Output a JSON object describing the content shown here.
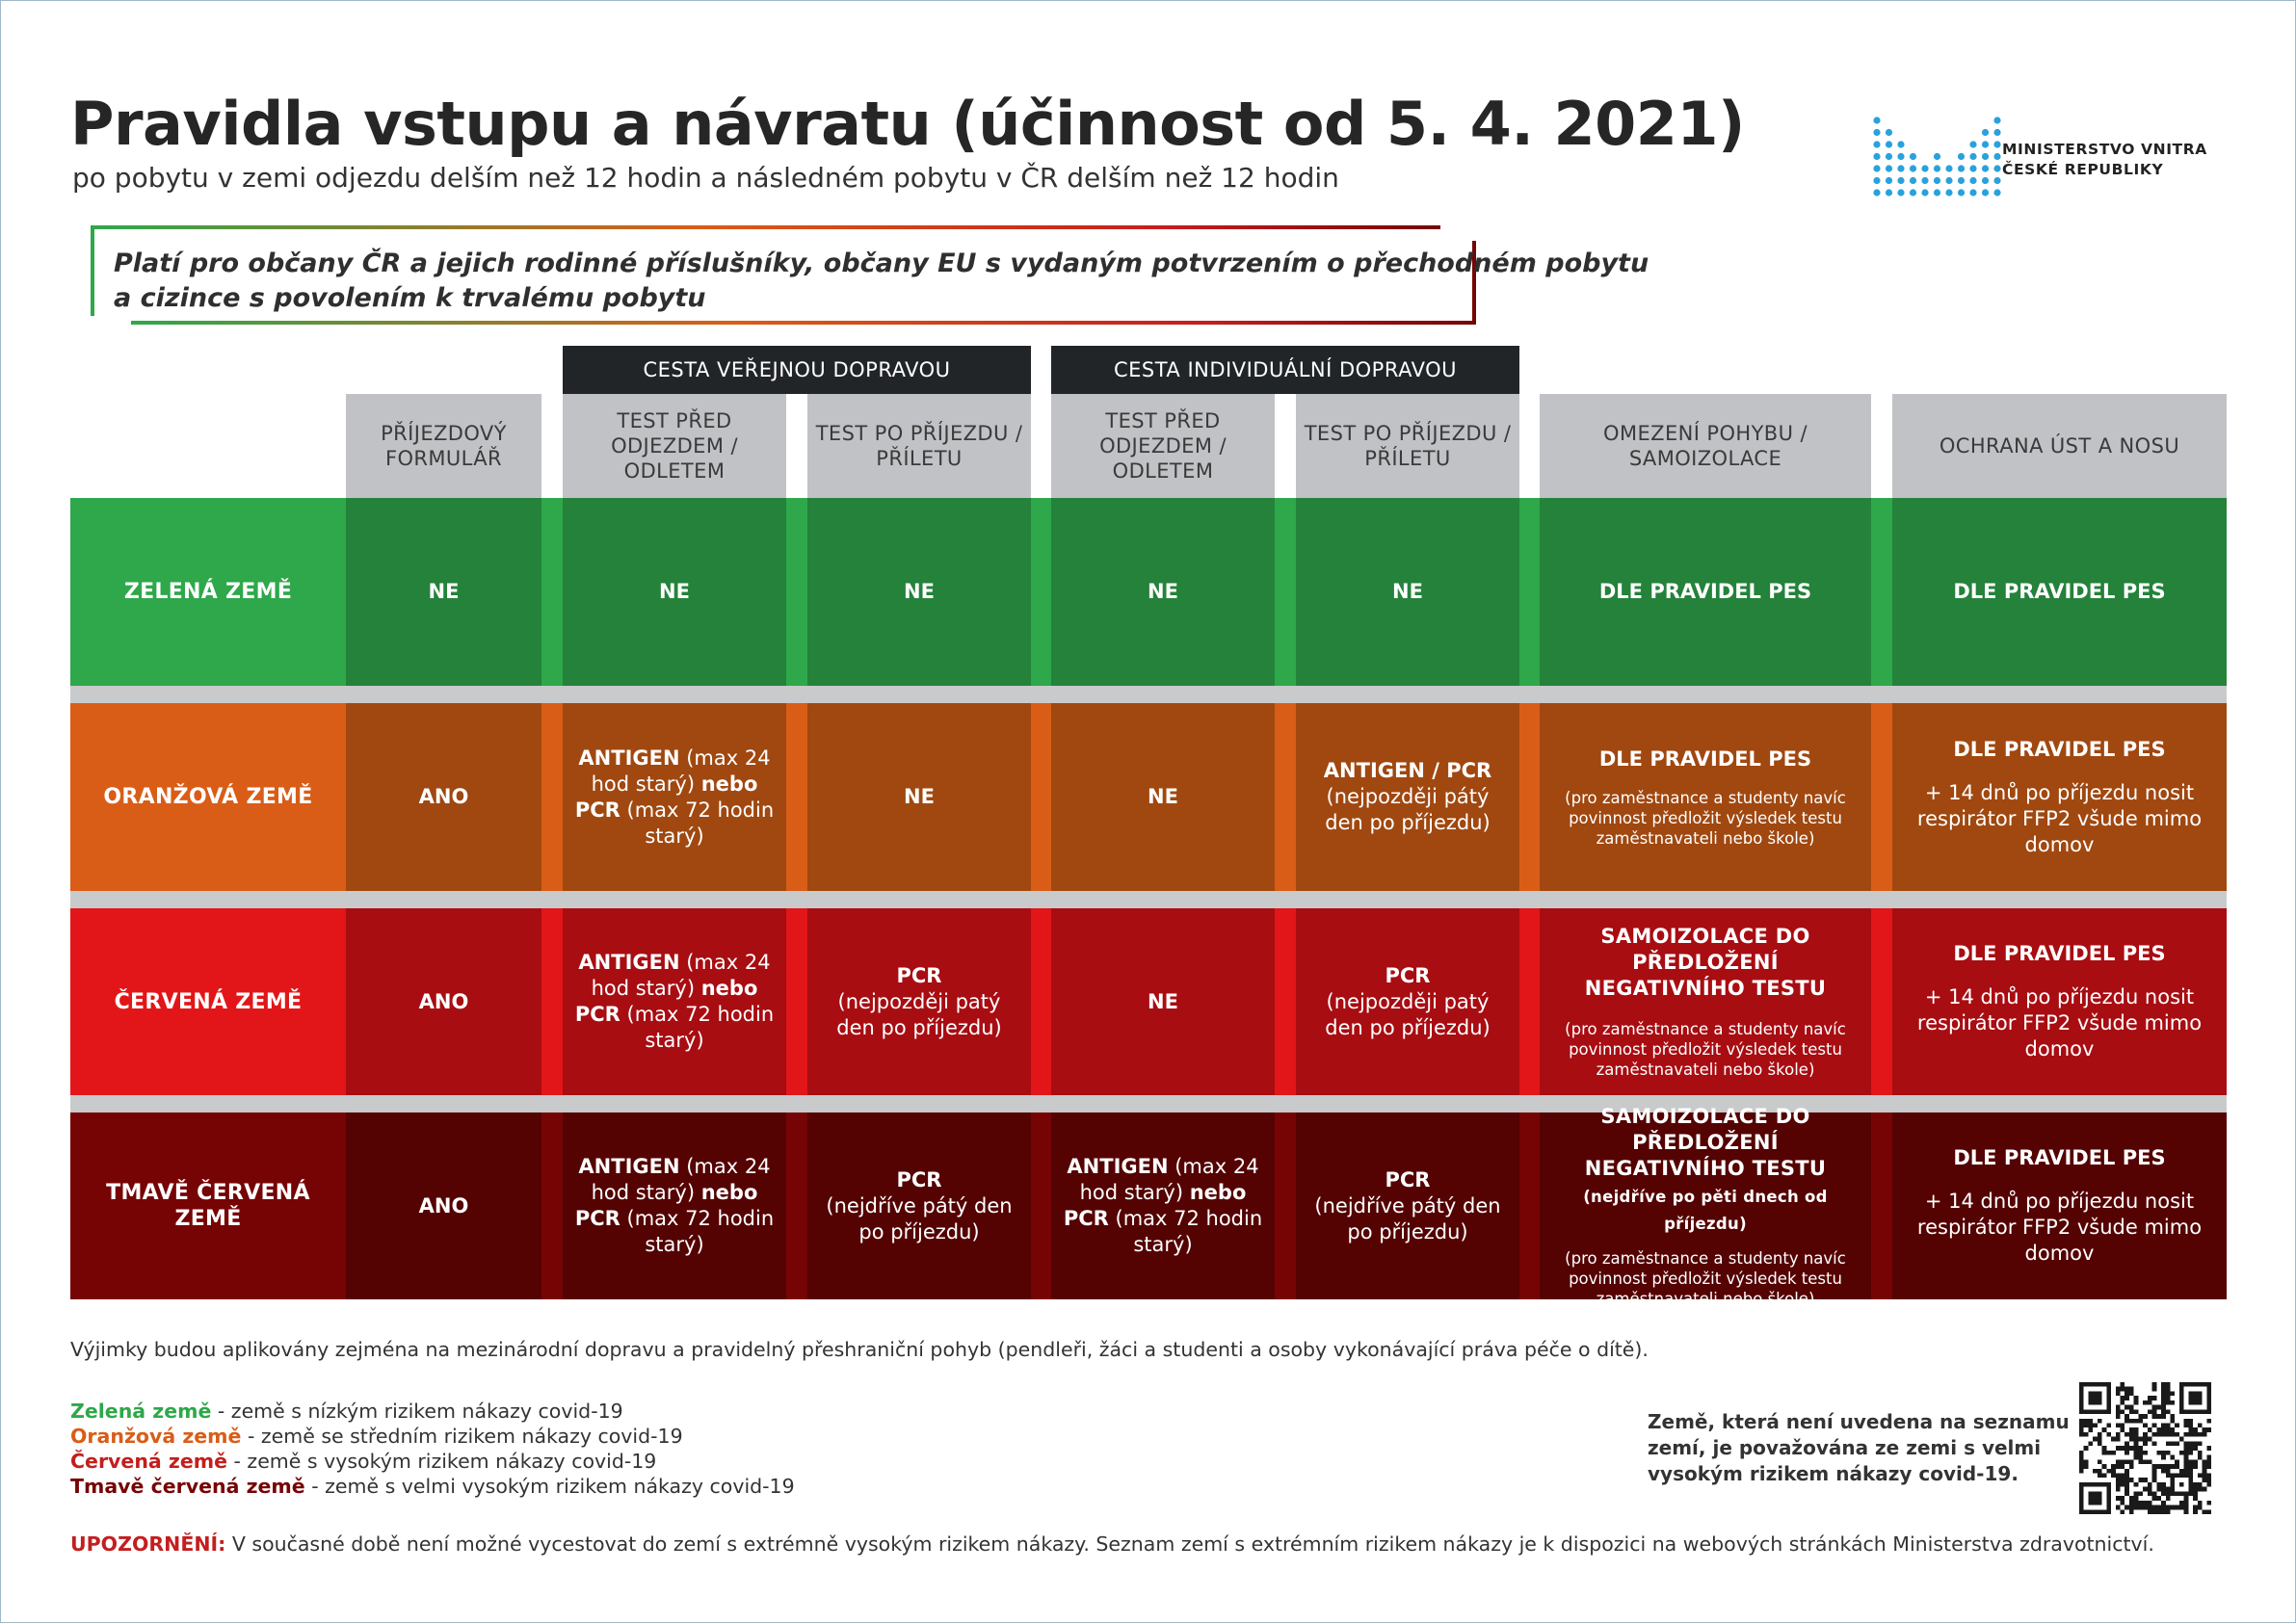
{
  "header": {
    "title": "Pravidla vstupu a návratu (účinnost od 5. 4. 2021)",
    "subtitle": "po pobytu v zemi odjezdu delším než 12 hodin a následném pobytu v ČR delším než 12 hodin"
  },
  "logo": {
    "line1": "MINISTERSTVO VNITRA",
    "line2": "ČESKÉ REPUBLIKY",
    "color": "#2aa1dc"
  },
  "note": {
    "line1": "Platí pro občany ČR a jejich rodinné příslušníky, občany EU s vydaným potvrzením o přechodném pobytu",
    "line2": "a cizince s povolením k trvalému pobytu"
  },
  "groups": {
    "public": "CESTA VEŘEJNOU DOPRAVOU",
    "individual": "CESTA INDIVIDUÁLNÍ DOPRAVOU"
  },
  "columns": {
    "form": "PŘÍJEZDOVÝ FORMULÁŘ",
    "pub_before": "TEST PŘED ODJEZDEM / ODLETEM",
    "pub_after": "TEST PO PŘÍJEZDU / PŘÍLETU",
    "ind_before": "TEST PŘED ODJEZDEM / ODLETEM",
    "ind_after": "TEST PO PŘÍJEZDU / PŘÍLETU",
    "movement": "OMEZENÍ POHYBU / SAMOIZOLACE",
    "mask": "OCHRANA ÚST A NOSU"
  },
  "rows": {
    "green": {
      "label": "ZELENÁ ZEMĚ",
      "form": "NE",
      "pub_before": "NE",
      "pub_after": "NE",
      "ind_before": "NE",
      "ind_after": "NE",
      "movement": "DLE PRAVIDEL PES",
      "mask": "DLE PRAVIDEL PES"
    },
    "orange": {
      "label": "ORANŽOVÁ ZEMĚ",
      "form": "ANO",
      "pub_before": {
        "a": "ANTIGEN",
        "b": " (max 24 hod starý) ",
        "c": "nebo PCR",
        "d": " (max 72 hodin starý)"
      },
      "pub_after": "NE",
      "ind_before": "NE",
      "ind_after": {
        "a": "ANTIGEN / PCR",
        "b": "(nejpozději pátý den po příjezdu)"
      },
      "movement": {
        "a": "DLE PRAVIDEL PES",
        "b": "(pro zaměstnance a studenty navíc povinnost předložit výsledek testu zaměstnavateli nebo škole)"
      },
      "mask": {
        "a": "DLE PRAVIDEL PES",
        "b": "+ 14 dnů po příjezdu nosit respirátor FFP2 všude mimo domov"
      }
    },
    "red": {
      "label": "ČERVENÁ ZEMĚ",
      "form": "ANO",
      "pub_before": {
        "a": "ANTIGEN",
        "b": " (max 24 hod starý) ",
        "c": "nebo PCR",
        "d": " (max 72 hodin starý)"
      },
      "pub_after": {
        "a": "PCR",
        "b": "(nejpozději patý den po příjezdu)"
      },
      "ind_before": "NE",
      "ind_after": {
        "a": "PCR",
        "b": "(nejpozději patý den po příjezdu)"
      },
      "movement": {
        "a": "SAMOIZOLACE DO PŘEDLOŽENÍ NEGATIVNÍHO TESTU",
        "b": "(pro zaměstnance a studenty navíc povinnost předložit výsledek testu zaměstnavateli nebo škole)"
      },
      "mask": {
        "a": "DLE PRAVIDEL PES",
        "b": "+ 14 dnů po příjezdu nosit respirátor FFP2 všude mimo domov"
      }
    },
    "darkred": {
      "label": "TMAVĚ ČERVENÁ ZEMĚ",
      "form": "ANO",
      "pub_before": {
        "a": "ANTIGEN",
        "b": " (max 24 hod starý) ",
        "c": "nebo PCR",
        "d": " (max 72 hodin starý)"
      },
      "pub_after": {
        "a": "PCR",
        "b": "(nejdříve pátý den po příjezdu)"
      },
      "ind_before": {
        "a": "ANTIGEN",
        "b": " (max 24 hod starý) ",
        "c": "nebo PCR",
        "d": " (max 72 hodin starý)"
      },
      "ind_after": {
        "a": "PCR",
        "b": "(nejdříve pátý den po příjezdu)"
      },
      "movement": {
        "a": "SAMOIZOLACE DO PŘEDLOŽENÍ NEGATIVNÍHO TESTU",
        "a2": " (nejdříve po pěti dnech od příjezdu)",
        "b": "(pro zaměstnance a studenty navíc povinnost předložit výsledek testu zaměstnavateli nebo škole)"
      },
      "mask": {
        "a": "DLE PRAVIDEL PES",
        "b": "+ 14 dnů po příjezdu nosit respirátor FFP2 všude mimo domov"
      }
    }
  },
  "colors": {
    "green_label": "#2ea84a",
    "green_cell": "#24823a",
    "orange_label": "#d95d17",
    "orange_cell": "#a04810",
    "red_label": "#e21618",
    "red_cell": "#a80d12",
    "darkred_label": "#760405",
    "darkred_cell": "#540202",
    "header_gray": "#c0c2c5",
    "group_dark": "#222528"
  },
  "footer": {
    "exceptions": "Výjimky budou aplikovány zejména na mezinárodní dopravu a pravidelný přeshraniční pohyb (pendleři, žáci a studenti a osoby vykonávající práva péče o dítě).",
    "legend": [
      {
        "name": "Zelená země",
        "text": " - země s nízkým rizikem nákazy covid-19",
        "color": "#2ea84a"
      },
      {
        "name": "Oranžová země",
        "text": " - země se středním rizikem nákazy covid-19",
        "color": "#d95d17"
      },
      {
        "name": "Červená země",
        "text": " - země s vysokým rizikem nákazy covid-19",
        "color": "#c41e1e"
      },
      {
        "name": "Tmavě červená země",
        "text": " - země s velmi vysokým rizikem nákazy covid-19",
        "color": "#760405"
      }
    ],
    "unlisted": [
      "Země, která není uvedena na seznamu",
      "zemí, je považována ze zemi s velmi",
      "vysokým rizikem nákazy covid-19."
    ],
    "warning_label": "UPOZORNĚNÍ:",
    "warning_text": " V současné době není možné vycestovat do zemí s extrémně vysokým rizikem nákazy. Seznam zemí s extrémním rizikem nákazy je k dispozici na webových stránkách Ministerstva zdravotnictví."
  }
}
